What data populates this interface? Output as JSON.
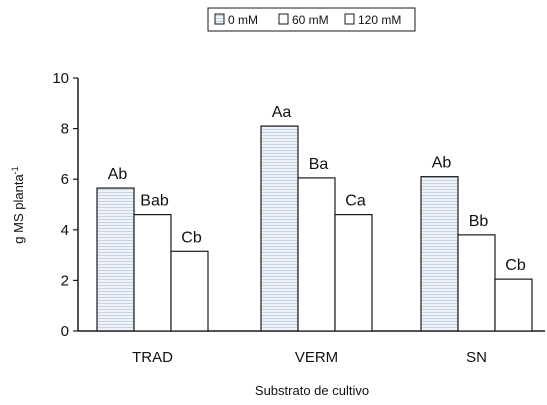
{
  "chart_data": {
    "type": "bar",
    "categories": [
      "TRAD",
      "VERM",
      "SN"
    ],
    "series": [
      {
        "name": "0 mM",
        "values": [
          5.65,
          8.1,
          6.1
        ],
        "labels": [
          "Ab",
          "Aa",
          "Ab"
        ]
      },
      {
        "name": "60 mM",
        "values": [
          4.6,
          6.05,
          3.8
        ],
        "labels": [
          "Bab",
          "Ba",
          "Bb"
        ]
      },
      {
        "name": "120 mM",
        "values": [
          3.15,
          4.6,
          2.05
        ],
        "labels": [
          "Cb",
          "Ca",
          "Cb"
        ]
      }
    ],
    "xlabel": "Substrato de cultivo",
    "ylabel": "g MS planta",
    "ylabel_superscript": "-1",
    "ylim": [
      0,
      10
    ],
    "yticks": [
      0,
      2,
      4,
      6,
      8,
      10
    ],
    "grid": false,
    "legend_position": "top-center",
    "colors": {
      "0 mM": "#e9eef7",
      "60 mM": "#ffffff",
      "120 mM": "#ffffff",
      "stroke": "#1a1a1a",
      "hatch": "#c9d2e4"
    }
  }
}
